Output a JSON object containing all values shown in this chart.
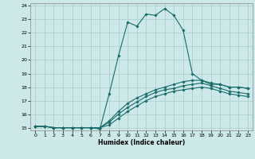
{
  "title": "",
  "xlabel": "Humidex (Indice chaleur)",
  "ylabel": "",
  "xlim": [
    -0.5,
    23.5
  ],
  "ylim": [
    14.8,
    24.2
  ],
  "xticks": [
    0,
    1,
    2,
    3,
    4,
    5,
    6,
    7,
    8,
    9,
    10,
    11,
    12,
    13,
    14,
    15,
    16,
    17,
    18,
    19,
    20,
    21,
    22,
    23
  ],
  "yticks": [
    15,
    16,
    17,
    18,
    19,
    20,
    21,
    22,
    23,
    24
  ],
  "bg_color": "#cce8e8",
  "grid_color": "#aacccc",
  "line_color": "#1a6b6b",
  "lines": [
    [
      0,
      15.1,
      1,
      15.1,
      2,
      15.0,
      3,
      15.0,
      4,
      15.0,
      5,
      15.0,
      6,
      15.0,
      7,
      14.9,
      8,
      17.5,
      9,
      20.3,
      10,
      22.8,
      11,
      22.5,
      12,
      23.4,
      13,
      23.3,
      14,
      23.8,
      15,
      23.3,
      16,
      22.2,
      17,
      19.0,
      18,
      18.5,
      19,
      18.2,
      20,
      18.2,
      21,
      18.0,
      22,
      18.0,
      23,
      17.9
    ],
    [
      0,
      15.1,
      1,
      15.1,
      2,
      15.0,
      3,
      15.0,
      4,
      15.0,
      5,
      15.0,
      6,
      15.0,
      7,
      15.0,
      8,
      15.5,
      9,
      16.2,
      10,
      16.8,
      11,
      17.2,
      12,
      17.5,
      13,
      17.8,
      14,
      18.0,
      15,
      18.2,
      16,
      18.4,
      17,
      18.5,
      18,
      18.5,
      19,
      18.3,
      20,
      18.2,
      21,
      18.0,
      22,
      18.0,
      23,
      17.9
    ],
    [
      0,
      15.1,
      1,
      15.1,
      2,
      15.0,
      3,
      15.0,
      4,
      15.0,
      5,
      15.0,
      6,
      15.0,
      7,
      15.0,
      8,
      15.4,
      9,
      16.0,
      10,
      16.5,
      11,
      16.9,
      12,
      17.3,
      13,
      17.6,
      14,
      17.8,
      15,
      17.9,
      16,
      18.1,
      17,
      18.2,
      18,
      18.3,
      19,
      18.1,
      20,
      17.9,
      21,
      17.7,
      22,
      17.6,
      23,
      17.5
    ],
    [
      0,
      15.1,
      1,
      15.1,
      2,
      15.0,
      3,
      15.0,
      4,
      15.0,
      5,
      15.0,
      6,
      15.0,
      7,
      15.0,
      8,
      15.2,
      9,
      15.7,
      10,
      16.2,
      11,
      16.6,
      12,
      17.0,
      13,
      17.3,
      14,
      17.5,
      15,
      17.7,
      16,
      17.8,
      17,
      17.9,
      18,
      18.0,
      19,
      17.9,
      20,
      17.7,
      21,
      17.5,
      22,
      17.4,
      23,
      17.3
    ]
  ]
}
